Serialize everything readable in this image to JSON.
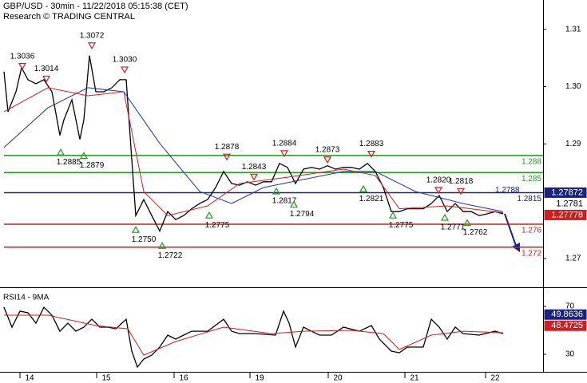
{
  "chart_data": [
    {
      "type": "line",
      "title": "GBP/USD - 30min - 11/22/2018 05:15:38 (CET)",
      "subtitle": "Research © TRADING CENTRAL",
      "xlim": [
        0,
        680
      ],
      "xticks": [
        {
          "value": 37,
          "label": "14"
        },
        {
          "value": 133,
          "label": "15"
        },
        {
          "value": 230,
          "label": "16"
        },
        {
          "value": 325,
          "label": "19"
        },
        {
          "value": 423,
          "label": "20"
        },
        {
          "value": 519,
          "label": "21"
        },
        {
          "value": 620,
          "label": "22"
        }
      ],
      "ylim": [
        1.2657,
        1.3151
      ],
      "yticks": [
        1.31,
        {
          "value": 1.3,
          "label": "1.30"
        },
        1.29,
        1.27
      ],
      "x": [
        5,
        10,
        20,
        27,
        35,
        45,
        55,
        65,
        75,
        80,
        90,
        100,
        105,
        112,
        120,
        130,
        140,
        150,
        158,
        165,
        170,
        180,
        190,
        200,
        210,
        220,
        230,
        240,
        250,
        260,
        270,
        280,
        290,
        300,
        310,
        320,
        330,
        340,
        350,
        360,
        370,
        380,
        390,
        400,
        410,
        420,
        430,
        440,
        450,
        460,
        470,
        480,
        490,
        500,
        510,
        520,
        530,
        540,
        550,
        560,
        570,
        580,
        590,
        600,
        610,
        620,
        630
      ],
      "series": [
        {
          "color": "#000000",
          "values": [
            1.3026,
            1.2956,
            1.2991,
            1.3033,
            1.3012,
            1.3005,
            1.3012,
            1.2991,
            1.2915,
            1.2942,
            1.2977,
            1.2908,
            1.2942,
            1.3054,
            1.2991,
            1.2991,
            1.2998,
            1.3012,
            1.3012,
            1.2873,
            1.2775,
            1.2803,
            1.2775,
            1.2748,
            1.2782,
            1.2768,
            1.2775,
            1.2787,
            1.2796,
            1.2803,
            1.2824,
            1.2852,
            1.2831,
            1.2828,
            1.2834,
            1.2828,
            1.2834,
            1.2834,
            1.2866,
            1.2859,
            1.2831,
            1.2856,
            1.2859,
            1.2856,
            1.2862,
            1.2856,
            1.2859,
            1.2859,
            1.2856,
            1.2866,
            1.2852,
            1.2824,
            1.2782,
            1.2782,
            1.2787,
            1.2787,
            1.2787,
            1.2796,
            1.281,
            1.2782,
            1.2796,
            1.2782,
            1.2782,
            1.2775,
            1.2778,
            1.2782,
            1.2778
          ]
        },
        {
          "color": "#2233aa",
          "x": [
            5,
            60,
            110,
            155,
            200,
            250,
            290,
            330,
            380,
            430,
            470,
            520,
            580,
            630
          ],
          "values": [
            1.2894,
            1.2963,
            1.2998,
            1.2991,
            1.2901,
            1.2817,
            1.2796,
            1.2824,
            1.2838,
            1.2852,
            1.2852,
            1.2817,
            1.2796,
            1.2782
          ]
        },
        {
          "color": "#cc2020",
          "x": [
            5,
            60,
            110,
            155,
            180,
            210,
            260,
            300,
            360,
            430,
            470,
            500,
            560,
            630
          ],
          "values": [
            1.2956,
            1.2998,
            1.2984,
            1.2991,
            1.2817,
            1.2775,
            1.2792,
            1.2831,
            1.2842,
            1.2856,
            1.2845,
            1.2787,
            1.2792,
            1.278
          ]
        }
      ],
      "levels": [
        {
          "value": 1.288,
          "color": "#229922"
        },
        {
          "value": 1.285,
          "color": "#229922"
        },
        {
          "value": 1.2815,
          "color": "#1a237e",
          "note": "1.2788"
        },
        {
          "value": 1.276,
          "color": "#cc2020"
        },
        {
          "value": 1.272,
          "color": "#cc2020"
        }
      ],
      "highs": {
        "x": [
          28,
          58,
          115,
          156,
          284,
          318,
          356,
          410,
          465,
          549,
          577
        ],
        "values": [
          1.3036,
          1.3014,
          1.3072,
          1.303,
          1.2878,
          1.2843,
          1.2884,
          1.2873,
          1.2883,
          1.282,
          1.2818
        ],
        "value_labels": [
          "1.3036",
          "1.3014",
          "1.3072",
          "1.3030",
          "1.2878",
          "1.2843",
          "1.2884",
          "1.2873",
          "1.2883",
          "1.2820",
          "1.2818"
        ]
      },
      "lows": {
        "x": [
          76,
          105,
          170,
          203,
          262,
          346,
          368,
          455,
          492,
          557,
          585
        ],
        "values": [
          1.2885,
          1.2879,
          1.275,
          1.2722,
          1.2775,
          1.2817,
          1.2794,
          1.2821,
          1.2775,
          1.2771,
          1.2762
        ],
        "value_labels": [
          "1.2885",
          "1.2879",
          "1.2750",
          "1.2722",
          "1.2775",
          "1.2817",
          "1.2794",
          "1.2821",
          "1.2775",
          "1.2771",
          "1.2762"
        ]
      },
      "price_tags": [
        {
          "value": 1.27872,
          "color": "#1a237e"
        },
        {
          "value": 1.2781,
          "color": "#ffffff"
        },
        {
          "value": 1.27778,
          "color": "#cc2020"
        }
      ]
    },
    {
      "type": "line",
      "title": "RSI14 - 9MA",
      "xlim": [
        0,
        680
      ],
      "ylim": [
        16,
        82.7
      ],
      "yticks": [
        70,
        30
      ],
      "x": [
        5,
        15,
        25,
        35,
        45,
        55,
        65,
        75,
        85,
        95,
        105,
        115,
        125,
        135,
        145,
        158,
        165,
        172,
        180,
        190,
        200,
        210,
        220,
        230,
        240,
        260,
        280,
        290,
        300,
        320,
        345,
        355,
        362,
        370,
        380,
        390,
        400,
        415,
        430,
        450,
        465,
        475,
        490,
        500,
        510,
        530,
        540,
        550,
        560,
        570,
        580,
        600,
        620,
        630
      ],
      "series": [
        {
          "color": "#000000",
          "values": [
            69.3,
            52.7,
            66,
            64.7,
            56,
            69.3,
            62.7,
            49.3,
            56,
            49.3,
            52.7,
            59.3,
            52.7,
            52.7,
            51.3,
            59.3,
            32.7,
            19.3,
            26,
            29.3,
            36,
            46,
            42.7,
            46,
            49.3,
            49.3,
            59.3,
            49.3,
            47.3,
            47.3,
            46,
            66,
            56,
            36,
            52.7,
            49.3,
            46,
            46,
            52.7,
            49.3,
            54,
            42.7,
            32.7,
            31.3,
            36,
            36,
            59.3,
            52.7,
            42.7,
            52.7,
            47.3,
            46,
            49.3,
            47.3
          ]
        },
        {
          "color": "#cc2020",
          "x": [
            5,
            60,
            120,
            160,
            180,
            220,
            280,
            340,
            380,
            440,
            480,
            500,
            540,
            580,
            630
          ],
          "values": [
            62.7,
            62.7,
            54,
            51.3,
            29.3,
            40.7,
            52.7,
            47.3,
            49.3,
            50,
            47.3,
            34,
            46,
            49.3,
            48
          ]
        }
      ],
      "price_tags": [
        {
          "value": 49.8636,
          "color": "#1a237e"
        },
        {
          "value": 48.4725,
          "color": "#cc2020"
        }
      ]
    }
  ]
}
